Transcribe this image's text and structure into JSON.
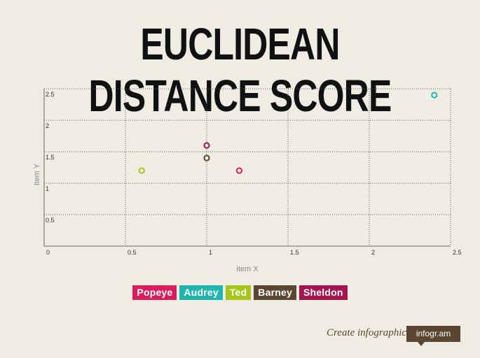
{
  "title": "EUCLIDEAN DISTANCE SCORE",
  "chart_data": {
    "type": "scatter",
    "xlabel": "item X",
    "ylabel": "item Y",
    "xlim": [
      0,
      2.5
    ],
    "ylim": [
      0,
      2.5
    ],
    "x_ticks": [
      "0",
      "0.5",
      "1",
      "1.5",
      "2",
      "2.5"
    ],
    "y_ticks": [
      "0.5",
      "1",
      "1.5",
      "2",
      "2.5"
    ],
    "grid": true,
    "legend": "bottom-center",
    "series": [
      {
        "name": "Popeye",
        "color": "#d81e5b",
        "points": [
          [
            1.2,
            1.2
          ]
        ]
      },
      {
        "name": "Audrey",
        "color": "#1fb5ad",
        "points": [
          [
            2.4,
            2.4
          ]
        ]
      },
      {
        "name": "Ted",
        "color": "#a6c51a",
        "points": [
          [
            0.6,
            1.2
          ]
        ]
      },
      {
        "name": "Barney",
        "color": "#5b4632",
        "points": [
          [
            1.0,
            1.4
          ]
        ]
      },
      {
        "name": "Sheldon",
        "color": "#a3154e",
        "points": [
          [
            1.0,
            1.6
          ]
        ]
      }
    ]
  },
  "footer": {
    "text": "Create infographics",
    "brand": "infogr.am"
  }
}
